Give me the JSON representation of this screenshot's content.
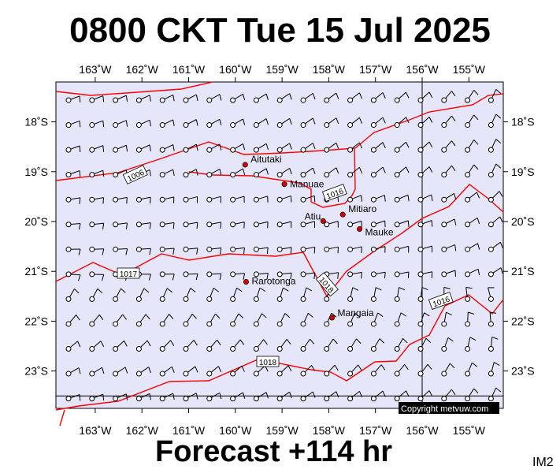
{
  "title": "0800 CKT Tue 15 Jul 2025",
  "footer": "Forecast +114 hr",
  "image_code": "IM2",
  "credit": "Copyright metvuw.com",
  "map": {
    "background_color": "#e6e6fa",
    "isobar_color": "#ff0000",
    "town_color": "#cc0000",
    "lon_ticks": [
      "163˚W",
      "162˚W",
      "161˚W",
      "160˚W",
      "159˚W",
      "158˚W",
      "157˚W",
      "156˚W",
      "155˚W"
    ],
    "lat_ticks": [
      "18˚S",
      "19˚S",
      "20˚S",
      "21˚S",
      "22˚S",
      "23˚S"
    ],
    "towns": [
      {
        "name": "Aitutaki",
        "lon": -159.79,
        "lat": -18.86
      },
      {
        "name": "Manuae",
        "lon": -158.95,
        "lat": -19.25
      },
      {
        "name": "Mitiaro",
        "lon": -157.7,
        "lat": -19.86
      },
      {
        "name": "Atiu",
        "lon": -158.12,
        "lat": -19.99
      },
      {
        "name": "Mauke",
        "lon": -157.34,
        "lat": -20.15
      },
      {
        "name": "Rarotonga",
        "lon": -159.77,
        "lat": -21.21
      },
      {
        "name": "Mangaia",
        "lon": -157.93,
        "lat": -21.93
      }
    ],
    "isobars": [
      {
        "label": "1006"
      },
      {
        "label": "1016"
      },
      {
        "label": "1016"
      },
      {
        "label": "1017"
      },
      {
        "label": "1018"
      },
      {
        "label": "1018"
      }
    ]
  }
}
